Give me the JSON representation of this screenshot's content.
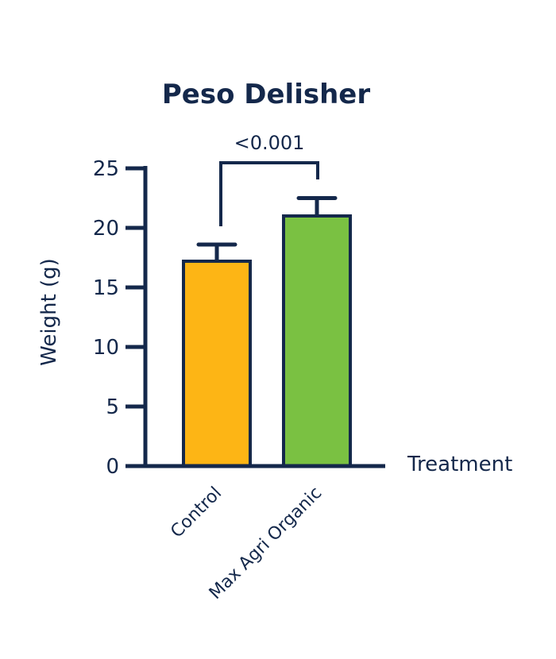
{
  "chart_data": {
    "type": "bar",
    "title": "Peso Delisher",
    "xlabel": "Treatment",
    "ylabel": "Weight (g)",
    "categories": [
      "Control",
      "Max Agri Organic"
    ],
    "values": [
      17.2,
      21.0
    ],
    "error": [
      1.4,
      1.5
    ],
    "bar_colors": [
      "#FDB515",
      "#7AC142"
    ],
    "ylim": [
      0,
      25
    ],
    "yticks": [
      0,
      5,
      10,
      15,
      20,
      25
    ],
    "grid": false,
    "legend": "none",
    "significance": {
      "label": "<0.001",
      "between": [
        "Control",
        "Max Agri Organic"
      ]
    }
  },
  "colors": {
    "axis": "#14284B",
    "text": "#14284B"
  }
}
